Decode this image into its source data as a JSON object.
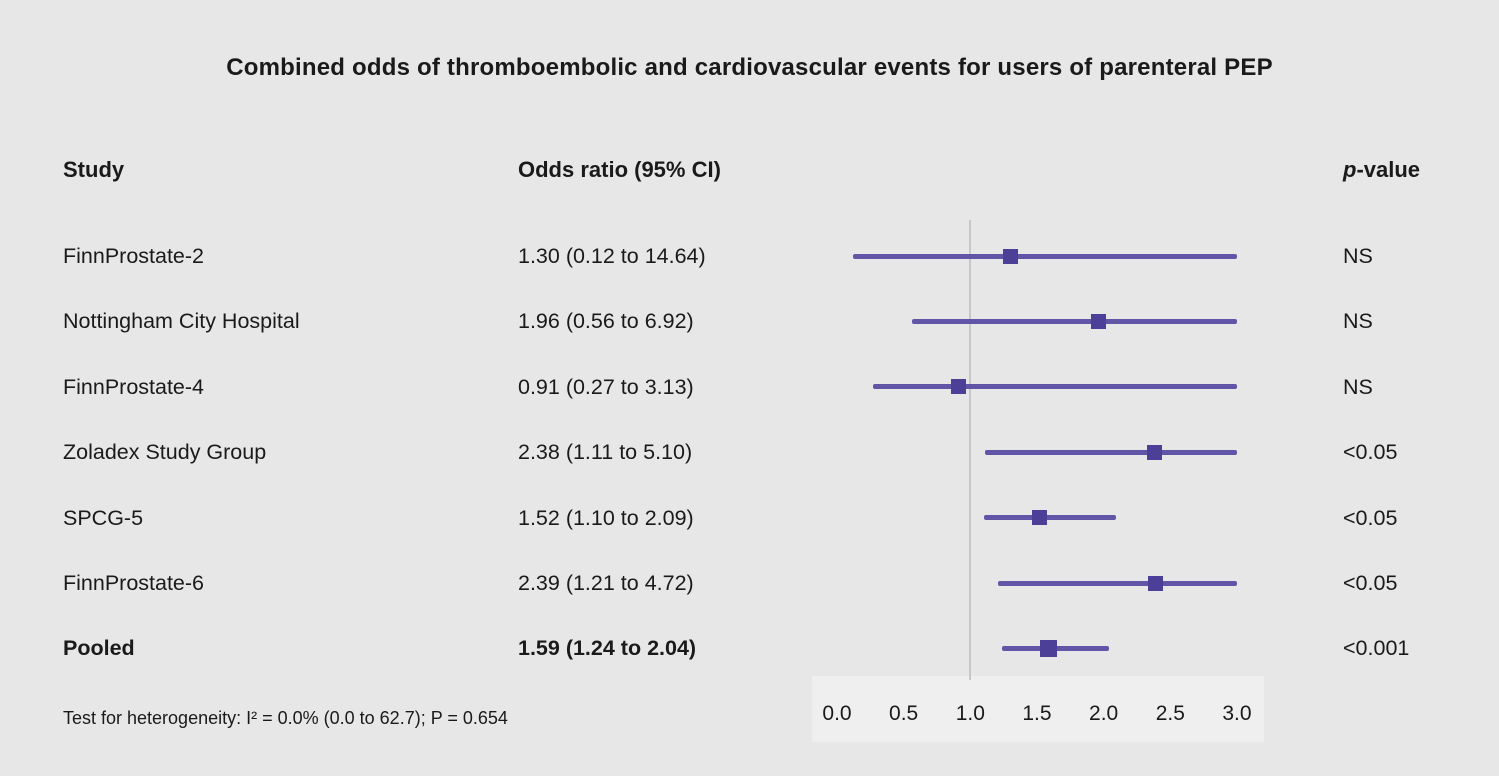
{
  "title": "Combined odds of thromboembolic and cardiovascular events for users of parenteral PEP",
  "columns": {
    "study": "Study",
    "or": "Odds ratio (95% CI)",
    "p_prefix": "p",
    "p_suffix": "-value"
  },
  "footnote": "Test for heterogeneity: I² = 0.0% (0.0 to 62.7); P = 0.654",
  "colors": {
    "background": "#e7e7e7",
    "ci_line": "#6055a6",
    "marker": "#4c3f98",
    "reference_line": "#c7c7c9",
    "axis_band": "#efeff0",
    "text": "#1a1a1a"
  },
  "chart_data": {
    "type": "forest",
    "title": "Combined odds of thromboembolic and cardiovascular events for users of parenteral PEP",
    "xlabel": "Odds ratio",
    "xlim": [
      0.0,
      3.0
    ],
    "xticks": [
      "0.0",
      "0.5",
      "1.0",
      "1.5",
      "2.0",
      "2.5",
      "3.0"
    ],
    "reference_line": 1.0,
    "clip_upper": 3.0,
    "legend": "none",
    "studies": [
      {
        "study": "FinnProstate-2",
        "or": 1.3,
        "ci_low": 0.12,
        "ci_high": 14.64,
        "or_label": "1.30 (0.12 to 14.64)",
        "p_value": "NS",
        "pooled": false
      },
      {
        "study": "Nottingham City Hospital",
        "or": 1.96,
        "ci_low": 0.56,
        "ci_high": 6.92,
        "or_label": "1.96 (0.56 to 6.92)",
        "p_value": "NS",
        "pooled": false
      },
      {
        "study": "FinnProstate-4",
        "or": 0.91,
        "ci_low": 0.27,
        "ci_high": 3.13,
        "or_label": "0.91 (0.27 to 3.13)",
        "p_value": "NS",
        "pooled": false
      },
      {
        "study": "Zoladex Study Group",
        "or": 2.38,
        "ci_low": 1.11,
        "ci_high": 5.1,
        "or_label": "2.38 (1.11 to 5.10)",
        "p_value": "<0.05",
        "pooled": false
      },
      {
        "study": "SPCG-5",
        "or": 1.52,
        "ci_low": 1.1,
        "ci_high": 2.09,
        "or_label": "1.52 (1.10 to 2.09)",
        "p_value": "<0.05",
        "pooled": false
      },
      {
        "study": "FinnProstate-6",
        "or": 2.39,
        "ci_low": 1.21,
        "ci_high": 4.72,
        "or_label": "2.39 (1.21 to 4.72)",
        "p_value": "<0.05",
        "pooled": false
      },
      {
        "study": "Pooled",
        "or": 1.59,
        "ci_low": 1.24,
        "ci_high": 2.04,
        "or_label": "1.59 (1.24 to 2.04)",
        "p_value": "<0.001",
        "pooled": true
      }
    ]
  }
}
